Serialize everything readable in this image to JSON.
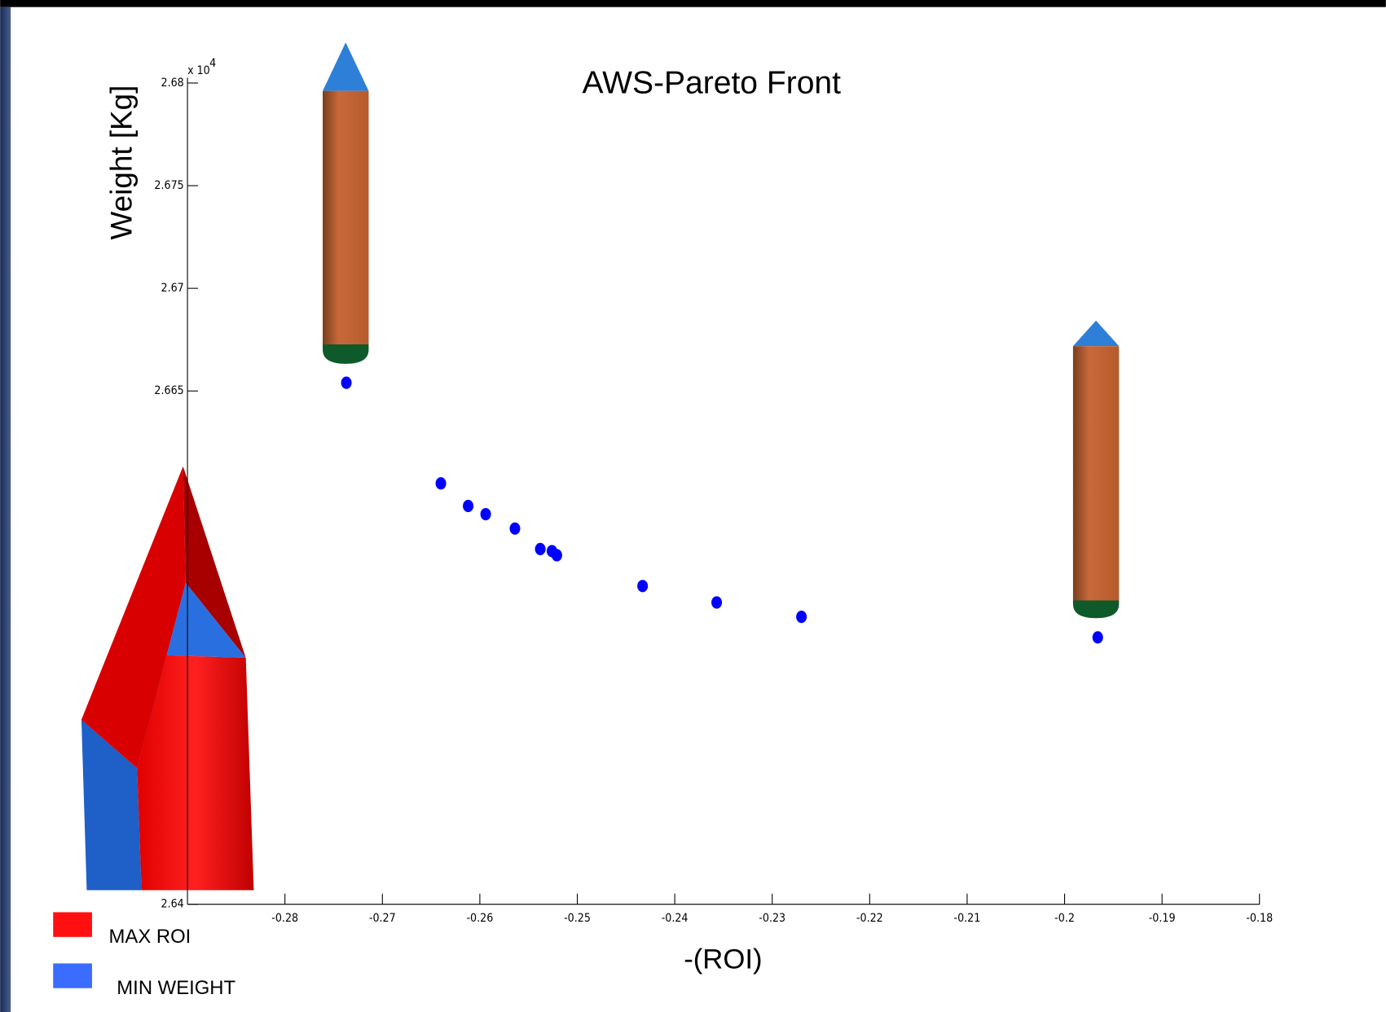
{
  "chart_data": {
    "type": "scatter",
    "title": "AWS-Pareto Front",
    "x_label": "-(ROI)",
    "y_label": "Weight [Kg]",
    "y_multiplier": "x 10",
    "y_multiplier_exp": "4",
    "x": [
      -0.2737,
      -0.264,
      -0.2612,
      -0.2594,
      -0.2564,
      -0.2538,
      -0.2526,
      -0.2521,
      -0.2433,
      -0.2357,
      -0.227,
      -0.1966
    ],
    "values": [
      2.6654,
      2.6605,
      2.6594,
      2.659,
      2.6583,
      2.6573,
      2.6572,
      2.657,
      2.6555,
      2.6547,
      2.654,
      2.653
    ],
    "color": "#0000ff",
    "xlim": [
      -0.29,
      -0.18
    ],
    "ylim": [
      2.64,
      2.68
    ],
    "xticks": [
      -0.28,
      -0.27,
      -0.26,
      -0.25,
      -0.24,
      -0.23,
      -0.22,
      -0.21,
      -0.2,
      -0.19,
      -0.18
    ],
    "yticks": [
      2.64,
      2.665,
      2.67,
      2.675,
      2.68
    ],
    "legend_items": [
      {
        "label": "MAX ROI",
        "color": "#ff1010"
      },
      {
        "label": "MIN WEIGHT",
        "color": "#3a6cff"
      }
    ]
  }
}
